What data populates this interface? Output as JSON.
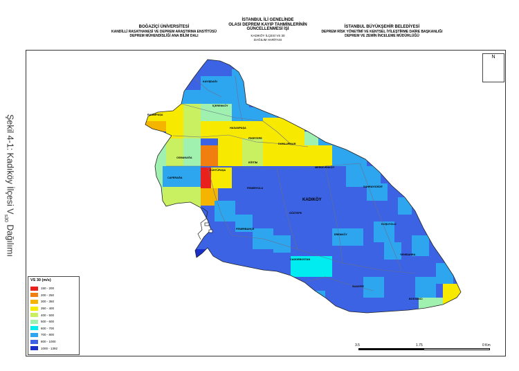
{
  "header": {
    "left_org": "BOĞAZİÇİ ÜNİVERSİTESİ",
    "left_sub1": "KANDİLLİ RASATHANESİ VE DEPREM ARAŞTIRMA ENSTİTÜSÜ",
    "left_sub2": "DEPREM MÜHENDİSLİĞİ ANA BİLİM DALI",
    "title1": "İSTANBUL İLİ GENELİNDE",
    "title2": "OLASI DEPREM KAYIP TAHMİNLERİNİN",
    "title3": "GÜNCELLENMESİ İŞİ",
    "subtitle1": "KADIKÖY İLÇESİ VS 30",
    "subtitle2": "DAĞILIM HARİTASI",
    "right_org": "İSTANBUL BÜYÜKŞEHİR BELEDİYESİ",
    "right_sub1": "DEPREM RİSK YÖNETİMİ VE KENTSEL İYİLEŞTİRME DAİRE BAŞKANLIĞI",
    "right_sub2": "DEPREM VE ZEMİN İNCELEME MÜDÜRLÜĞÜ"
  },
  "caption": "Şekil 4-1: Kadıköy İlçesi V",
  "caption_sub": "s30",
  "caption_end": " Dağılımı",
  "north_label": "N",
  "legend": {
    "title": "VS 30 (m/s)",
    "items": [
      {
        "label": "150 - 200",
        "color": "#e8211c"
      },
      {
        "label": "200 - 250",
        "color": "#f07f10"
      },
      {
        "label": "300 - 350",
        "color": "#f4b400"
      },
      {
        "label": "350 - 400",
        "color": "#f7ea00"
      },
      {
        "label": "400 - 500",
        "color": "#c8f060"
      },
      {
        "label": "500 - 600",
        "color": "#a0f0b0"
      },
      {
        "label": "600 - 700",
        "color": "#00ecf0"
      },
      {
        "label": "700 - 800",
        "color": "#2ea6ef"
      },
      {
        "label": "800 - 1000",
        "color": "#3b63e3"
      },
      {
        "label": "1000 - 1392",
        "color": "#1a2fc8"
      }
    ]
  },
  "scale": {
    "left": "3.5",
    "mid": "1.75",
    "right": "0 Km"
  },
  "places": {
    "kayisdagi": "KAYIŞDAĞI",
    "icerenkoy": "İÇERENKÖY",
    "kozyatagi": "KOZYATAĞI",
    "hasanpasa": "HASANPAŞA",
    "fikirtepe": "FİKİRTEPE",
    "dumlupinar": "DUMLUPINAR",
    "osmanaga": "OSMANAĞA",
    "zuhtupasa": "ZÜHTÜPAŞA",
    "egitim": "EĞİTİM",
    "merdivenkoy": "MERDİVENKÖY",
    "caferaga": "CAFERAĞA",
    "rasimpasa": "RASİMPAŞA",
    "kadikoy": "KADIKÖY",
    "feneryolu": "FENERYOLU",
    "goztepe": "GÖZTEPE",
    "sahrayicedit": "SAHRAYICEDİT",
    "fenerbahce": "FENERBAHÇE",
    "erenkoy": "ERENKÖY",
    "caddebostan": "CADDEBOSTAN",
    "suadiye": "SUADİYE",
    "bostanci": "BOSTANCI",
    "kostepe": "KOŞUYOLU",
    "yenisahra": "YENİSAHRA"
  }
}
